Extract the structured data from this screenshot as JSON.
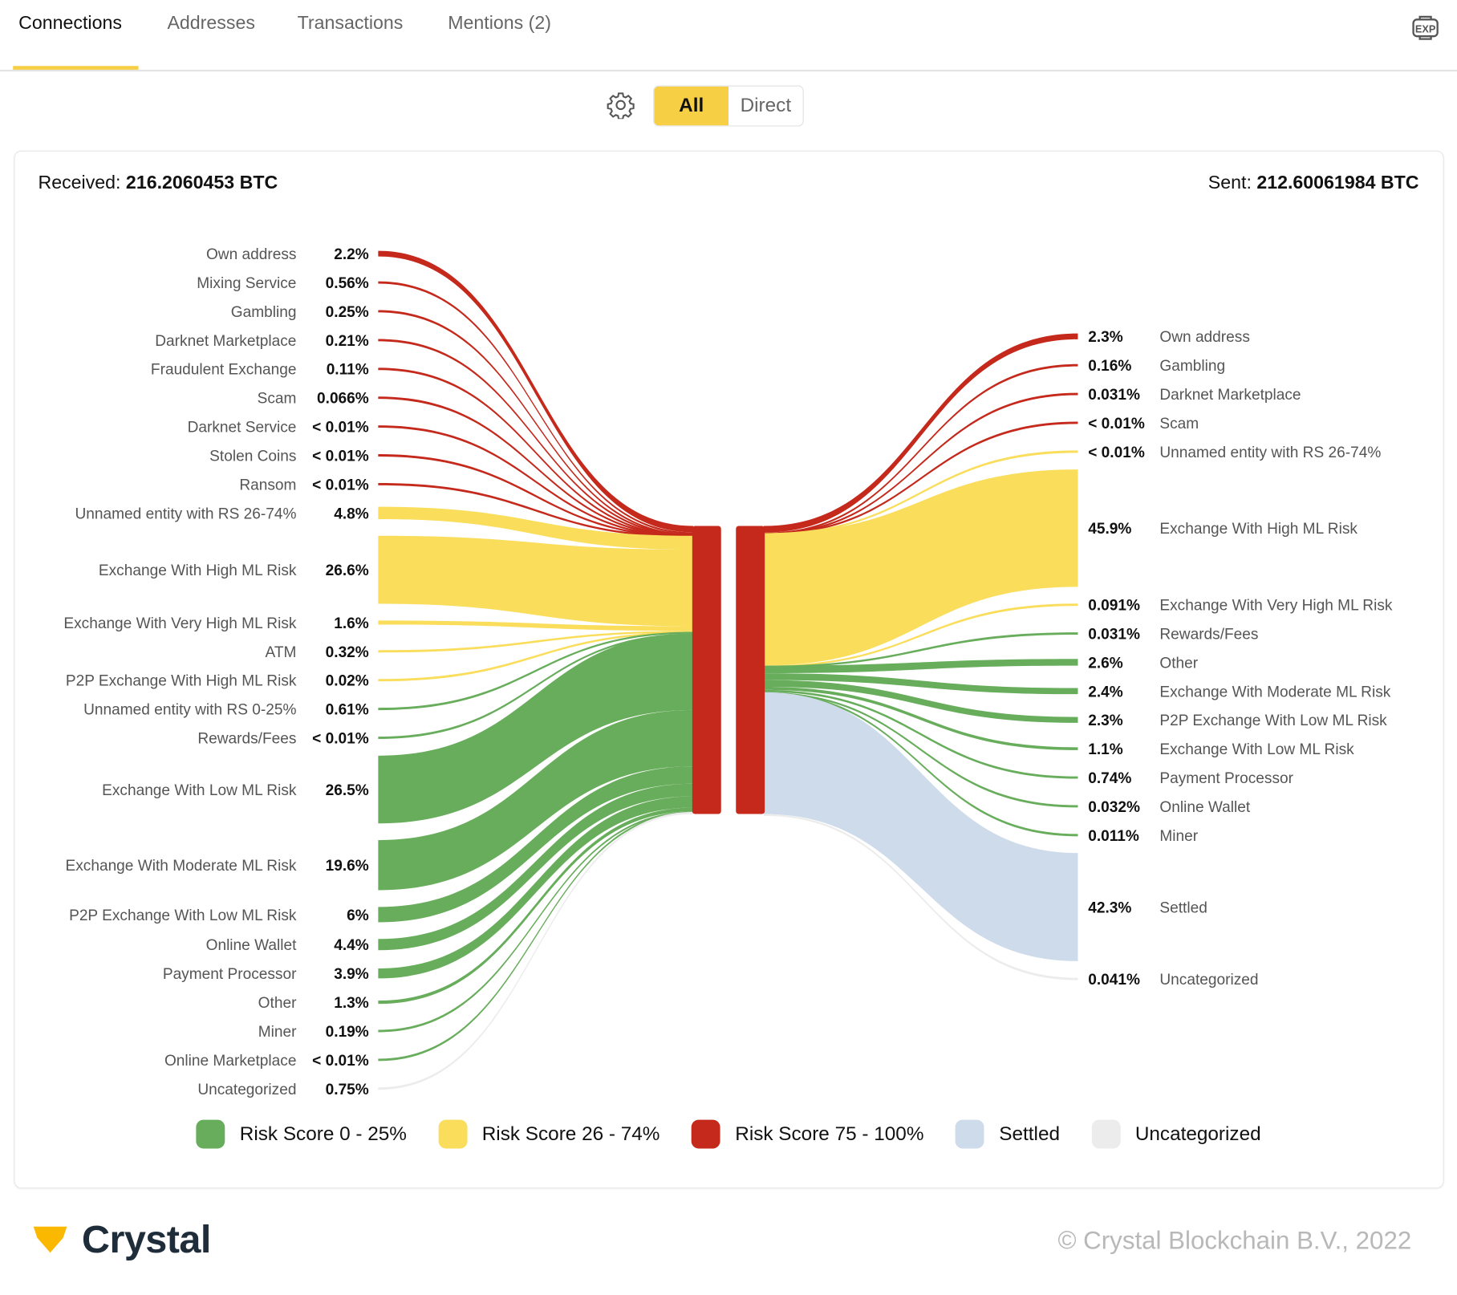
{
  "tabs": [
    {
      "label": "Connections",
      "active": true
    },
    {
      "label": "Addresses"
    },
    {
      "label": "Transactions"
    },
    {
      "label": "Mentions (2)"
    }
  ],
  "export_icon": "exp-icon",
  "settings_icon": "gear-icon",
  "toggle": {
    "options": [
      "All",
      "Direct"
    ],
    "selected": "All"
  },
  "totals": {
    "received_label": "Received:",
    "received_value": "216.2060453 BTC",
    "sent_label": "Sent:",
    "sent_value": "212.60061984 BTC"
  },
  "colors": {
    "risk_low": "#68ad5c",
    "risk_medium": "#f9dd5b",
    "risk_high": "#c4291c",
    "settled": "#cddbea",
    "uncategorized": "#ececec"
  },
  "chart_data": {
    "type": "sankey",
    "center_node_color": "risk_high",
    "legend": [
      {
        "label": "Risk Score 0 - 25%",
        "color": "risk_low"
      },
      {
        "label": "Risk Score 26 - 74%",
        "color": "risk_medium"
      },
      {
        "label": "Risk Score 75 - 100%",
        "color": "risk_high"
      },
      {
        "label": "Settled",
        "color": "settled"
      },
      {
        "label": "Uncategorized",
        "color": "uncategorized"
      }
    ],
    "received": [
      {
        "label": "Own address",
        "pct": "2.2%",
        "value": 2.2,
        "color": "risk_high"
      },
      {
        "label": "Mixing Service",
        "pct": "0.56%",
        "value": 0.56,
        "color": "risk_high"
      },
      {
        "label": "Gambling",
        "pct": "0.25%",
        "value": 0.25,
        "color": "risk_high"
      },
      {
        "label": "Darknet Marketplace",
        "pct": "0.21%",
        "value": 0.21,
        "color": "risk_high"
      },
      {
        "label": "Fraudulent Exchange",
        "pct": "0.11%",
        "value": 0.11,
        "color": "risk_high"
      },
      {
        "label": "Scam",
        "pct": "0.066%",
        "value": 0.066,
        "color": "risk_high"
      },
      {
        "label": "Darknet Service",
        "pct": "< 0.01%",
        "value": 0.005,
        "color": "risk_high"
      },
      {
        "label": "Stolen Coins",
        "pct": "< 0.01%",
        "value": 0.005,
        "color": "risk_high"
      },
      {
        "label": "Ransom",
        "pct": "< 0.01%",
        "value": 0.005,
        "color": "risk_high"
      },
      {
        "label": "Unnamed entity with RS 26-74%",
        "pct": "4.8%",
        "value": 4.8,
        "color": "risk_medium"
      },
      {
        "label": "Exchange With High ML Risk",
        "pct": "26.6%",
        "value": 26.6,
        "color": "risk_medium"
      },
      {
        "label": "Exchange With Very High ML Risk",
        "pct": "1.6%",
        "value": 1.6,
        "color": "risk_medium"
      },
      {
        "label": "ATM",
        "pct": "0.32%",
        "value": 0.32,
        "color": "risk_medium"
      },
      {
        "label": "P2P Exchange With High ML Risk",
        "pct": "0.02%",
        "value": 0.02,
        "color": "risk_medium"
      },
      {
        "label": "Unnamed entity with RS 0-25%",
        "pct": "0.61%",
        "value": 0.61,
        "color": "risk_low"
      },
      {
        "label": "Rewards/Fees",
        "pct": "< 0.01%",
        "value": 0.005,
        "color": "risk_low"
      },
      {
        "label": "Exchange With Low ML Risk",
        "pct": "26.5%",
        "value": 26.5,
        "color": "risk_low"
      },
      {
        "label": "Exchange With Moderate ML Risk",
        "pct": "19.6%",
        "value": 19.6,
        "color": "risk_low"
      },
      {
        "label": "P2P Exchange With Low ML Risk",
        "pct": "6%",
        "value": 6,
        "color": "risk_low"
      },
      {
        "label": "Online Wallet",
        "pct": "4.4%",
        "value": 4.4,
        "color": "risk_low"
      },
      {
        "label": "Payment Processor",
        "pct": "3.9%",
        "value": 3.9,
        "color": "risk_low"
      },
      {
        "label": "Other",
        "pct": "1.3%",
        "value": 1.3,
        "color": "risk_low"
      },
      {
        "label": "Miner",
        "pct": "0.19%",
        "value": 0.19,
        "color": "risk_low"
      },
      {
        "label": "Online Marketplace",
        "pct": "< 0.01%",
        "value": 0.005,
        "color": "risk_low"
      },
      {
        "label": "Uncategorized",
        "pct": "0.75%",
        "value": 0.75,
        "color": "uncategorized"
      }
    ],
    "sent": [
      {
        "label": "Own address",
        "pct": "2.3%",
        "value": 2.3,
        "color": "risk_high"
      },
      {
        "label": "Gambling",
        "pct": "0.16%",
        "value": 0.16,
        "color": "risk_high"
      },
      {
        "label": "Darknet Marketplace",
        "pct": "0.031%",
        "value": 0.031,
        "color": "risk_high"
      },
      {
        "label": "Scam",
        "pct": "< 0.01%",
        "value": 0.005,
        "color": "risk_high"
      },
      {
        "label": "Unnamed entity with RS 26-74%",
        "pct": "< 0.01%",
        "value": 0.005,
        "color": "risk_medium"
      },
      {
        "label": "Exchange With High ML Risk",
        "pct": "45.9%",
        "value": 45.9,
        "color": "risk_medium"
      },
      {
        "label": "Exchange With Very High ML Risk",
        "pct": "0.091%",
        "value": 0.091,
        "color": "risk_medium"
      },
      {
        "label": "Rewards/Fees",
        "pct": "0.031%",
        "value": 0.031,
        "color": "risk_low"
      },
      {
        "label": "Other",
        "pct": "2.6%",
        "value": 2.6,
        "color": "risk_low"
      },
      {
        "label": "Exchange With Moderate ML Risk",
        "pct": "2.4%",
        "value": 2.4,
        "color": "risk_low"
      },
      {
        "label": "P2P Exchange With Low ML Risk",
        "pct": "2.3%",
        "value": 2.3,
        "color": "risk_low"
      },
      {
        "label": "Exchange With Low ML Risk",
        "pct": "1.1%",
        "value": 1.1,
        "color": "risk_low"
      },
      {
        "label": "Payment Processor",
        "pct": "0.74%",
        "value": 0.74,
        "color": "risk_low"
      },
      {
        "label": "Online Wallet",
        "pct": "0.032%",
        "value": 0.032,
        "color": "risk_low"
      },
      {
        "label": "Miner",
        "pct": "0.011%",
        "value": 0.011,
        "color": "risk_low"
      },
      {
        "label": "Settled",
        "pct": "42.3%",
        "value": 42.3,
        "color": "settled"
      },
      {
        "label": "Uncategorized",
        "pct": "0.041%",
        "value": 0.041,
        "color": "uncategorized"
      }
    ]
  },
  "footer": {
    "logo": "Crystal",
    "copyright": "© Crystal Blockchain B.V., 2022"
  }
}
